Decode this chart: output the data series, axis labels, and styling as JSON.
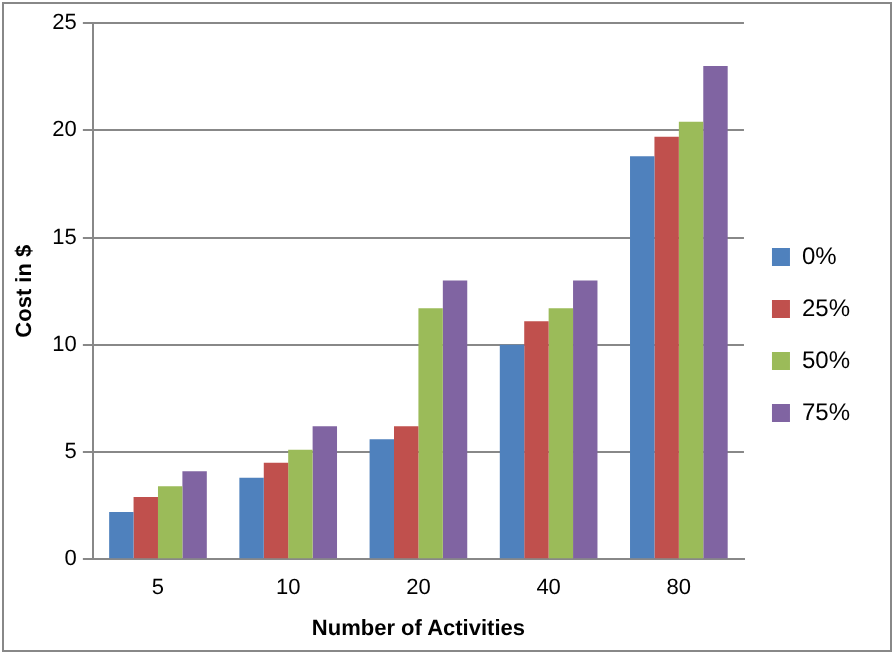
{
  "chart_data": {
    "type": "bar",
    "xlabel": "Number of Activities",
    "ylabel": "Cost in $",
    "categories": [
      "5",
      "10",
      "20",
      "40",
      "80"
    ],
    "series": [
      {
        "name": "0%",
        "color": "#4f81bd",
        "values": [
          2.2,
          3.8,
          5.6,
          10.0,
          18.8
        ]
      },
      {
        "name": "25%",
        "color": "#c0504d",
        "values": [
          2.9,
          4.5,
          6.2,
          11.1,
          19.7
        ]
      },
      {
        "name": "50%",
        "color": "#9bbb59",
        "values": [
          3.4,
          5.1,
          11.7,
          11.7,
          20.4
        ]
      },
      {
        "name": "75%",
        "color": "#8064a2",
        "values": [
          4.1,
          6.2,
          13.0,
          13.0,
          23.0
        ]
      }
    ],
    "ylim": [
      0,
      25
    ],
    "yticks": [
      0,
      5,
      10,
      15,
      20,
      25
    ],
    "grid": "y",
    "legend": "right"
  }
}
